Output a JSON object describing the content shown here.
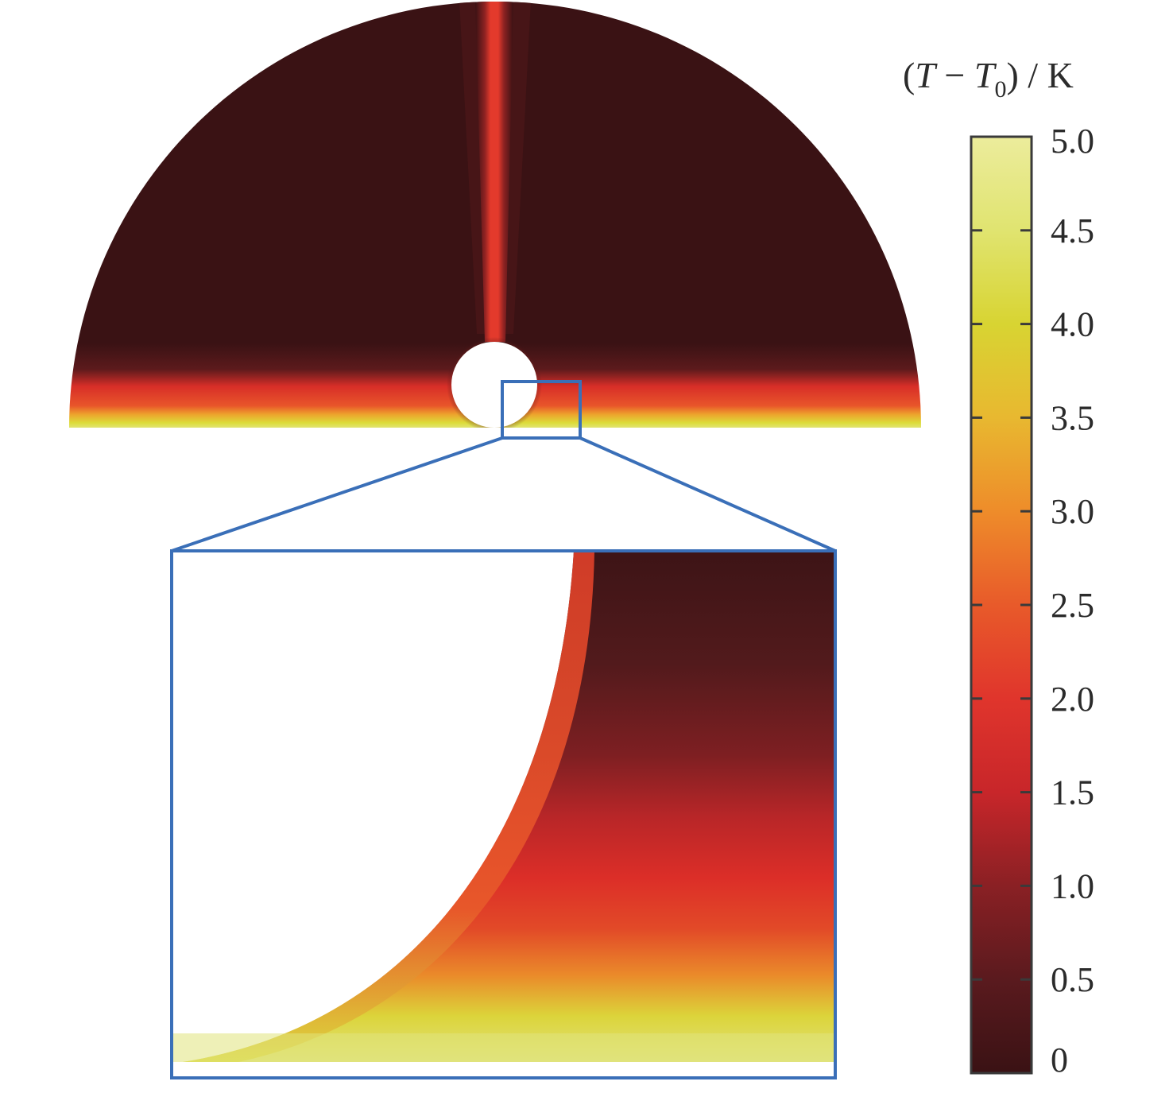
{
  "colorbar": {
    "title_prefix": "(",
    "title_T": "T",
    "title_minus": " − ",
    "title_T0": "T",
    "title_sub": "0",
    "title_suffix": ") / K",
    "min": 0,
    "max": 5.0,
    "tick_labels": [
      "0",
      "0.5",
      "1.0",
      "1.5",
      "2.0",
      "2.5",
      "3.0",
      "3.5",
      "4.0",
      "4.5",
      "5.0"
    ],
    "colormap": [
      "#3a1214",
      "#5a1a1e",
      "#8a2024",
      "#c8262a",
      "#e0352c",
      "#e85a2a",
      "#ee8c2a",
      "#e8b830",
      "#d8d432",
      "#e0e470",
      "#ecec9c"
    ]
  },
  "colors": {
    "zoom_box": "#3a6fb8",
    "background": "#ffffff"
  }
}
